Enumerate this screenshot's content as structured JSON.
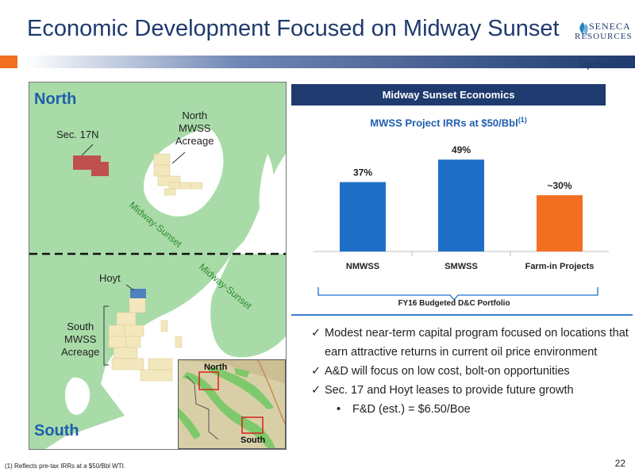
{
  "slide": {
    "title": "Economic Development Focused on Midway Sunset",
    "segment": "Upstream",
    "page_number": "22",
    "footnote": "(1) Reflects pre-tax IRRs at a $50/Bbl WTI."
  },
  "logo": {
    "line1": "SENECA",
    "line2": "RESOURCES"
  },
  "colors": {
    "navy": "#1f3a6e",
    "orange": "#f26f21",
    "blue": "#1f6fc8",
    "map_green": "#a8dba8",
    "acreage": "#f3e7bd",
    "sec17": "#c0504d",
    "hoyt": "#4f81bd"
  },
  "map": {
    "north_label": "North",
    "south_label": "South",
    "sec17_label": "Sec. 17N",
    "north_acreage_label": [
      "North",
      "MWSS",
      "Acreage"
    ],
    "hoyt_label": "Hoyt",
    "south_acreage_label": [
      "South",
      "MWSS",
      "Acreage"
    ],
    "field_label_north": "Midway-Sunset",
    "field_label_south": "Midway-Sunset",
    "inset_north": "North",
    "inset_south": "South"
  },
  "economics": {
    "header": "Midway Sunset Economics",
    "chart_title": "MWSS Project IRRs at $50/Bbl",
    "chart_title_sup": "(1)",
    "bracket_label": "FY16 Budgeted D&C Portfolio"
  },
  "chart_data": {
    "type": "bar",
    "title": "MWSS Project IRRs at $50/Bbl(1)",
    "categories": [
      "NMWSS",
      "SMWSS",
      "Farm-in Projects"
    ],
    "values": [
      37,
      49,
      30
    ],
    "data_labels": [
      "37%",
      "49%",
      "~30%"
    ],
    "bar_colors": [
      "#1f6fc8",
      "#1f6fc8",
      "#f26f21"
    ],
    "units": "%",
    "ylim": [
      0,
      55
    ],
    "grid": false,
    "legend": "none"
  },
  "bullets": [
    "Modest near-term capital program focused on locations that earn attractive returns in current oil price environment",
    "A&D will focus on low cost, bolt-on opportunities",
    "Sec. 17 and Hoyt leases to provide future growth"
  ],
  "sub_bullets": [
    "F&D (est.) = $6.50/Boe"
  ],
  "icons": {
    "check": "check-icon",
    "dot": "bullet-dot-icon",
    "logo": "seneca-flame-icon"
  }
}
